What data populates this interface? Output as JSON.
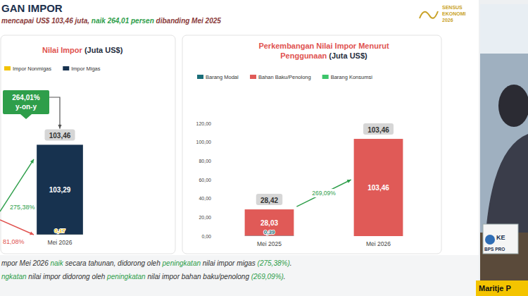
{
  "slide": {
    "title": "GAN IMPOR",
    "subtitle": [
      {
        "text": "mencapai US$ 103,46 juta, "
      },
      {
        "text": "naik 264,01 persen",
        "color": "#2e9e4a"
      },
      {
        "text": " dibanding Mei 2025"
      }
    ],
    "logo": [
      "SENSUS",
      "EKONOMI",
      "2026"
    ],
    "notes": [
      [
        {
          "text": "mpor Mei 2026 "
        },
        {
          "text": "naik",
          "color": "#2e9e4a"
        },
        {
          "text": " secara tahunan, didorong oleh "
        },
        {
          "text": "peningkatan",
          "color": "#2e9e4a"
        },
        {
          "text": " nilai impor migas "
        },
        {
          "text": "(275,38%)",
          "color": "#2e9e4a"
        },
        {
          "text": "."
        }
      ],
      [
        {
          "text": "ngkatan",
          "color": "#2e9e4a"
        },
        {
          "text": " nilai impor didorong oleh "
        },
        {
          "text": "peningkatan",
          "color": "#2e9e4a"
        },
        {
          "text": " nilai impor bahan baku/penolong "
        },
        {
          "text": "(269,09%)",
          "color": "#2e9e4a"
        },
        {
          "text": "."
        }
      ]
    ],
    "presenter": {
      "name": "Maritje P",
      "desk_sign": [
        "KE",
        "BPS PRO"
      ]
    }
  },
  "chart_data": [
    {
      "type": "bar",
      "stacked": true,
      "data_labels": true,
      "tick_labels": false,
      "legend": "top",
      "title": [
        {
          "text": "Nilai Impor ",
          "color": "#e0524f"
        },
        {
          "text": "(Juta US$)",
          "color": "#1f2d3d"
        }
      ],
      "categories": [
        "Mei 2026"
      ],
      "series": [
        {
          "name": "Impor Nonmigas",
          "color": "#f2c200",
          "values": [
            0.17
          ],
          "value_labels": [
            "0,17"
          ]
        },
        {
          "name": "Impor Migas",
          "color": "#17324f",
          "values": [
            103.29
          ],
          "value_labels": [
            "103,29"
          ]
        }
      ],
      "totals": [
        103.46
      ],
      "total_labels": [
        "103,46"
      ],
      "ylim": [
        0,
        120
      ],
      "growth": {
        "text": "264,01%",
        "sub": "y-on-y",
        "color": "#2e9e4a"
      },
      "changes": [
        {
          "text": "275,38%",
          "color": "#2e9e4a"
        },
        {
          "text": "81,08%",
          "color": "#e0524f"
        }
      ]
    },
    {
      "type": "bar",
      "stacked": true,
      "data_labels": true,
      "legend": "top",
      "title": [
        {
          "text": "Perkembangan Nilai Impor Menurut Penggunaan ",
          "color": "#e0524f"
        },
        {
          "text": "(Juta US$)",
          "color": "#1f2d3d"
        }
      ],
      "categories": [
        "Mei 2025",
        "Mei 2026"
      ],
      "series": [
        {
          "name": "Barang Modal",
          "color": "#1a6e79",
          "values": [
            0.39,
            0
          ],
          "value_labels": [
            "0,39",
            null
          ]
        },
        {
          "name": "Bahan Baku/Penolong",
          "color": "#e05a57",
          "values": [
            28.03,
            103.46
          ],
          "value_labels": [
            "28,03",
            "103,46"
          ]
        },
        {
          "name": "Barang Konsumsi",
          "color": "#3cc46a",
          "values": [
            0,
            0
          ]
        }
      ],
      "totals": [
        28.42,
        103.46
      ],
      "total_labels": [
        "28,42",
        "103,46"
      ],
      "ylim": [
        0,
        120
      ],
      "yticks": [
        {
          "value": 0,
          "label": "0,00"
        },
        {
          "value": 20,
          "label": "20,00"
        },
        {
          "value": 40,
          "label": "40,00"
        },
        {
          "value": 60,
          "label": "60,00"
        },
        {
          "value": 80,
          "label": "80,00"
        },
        {
          "value": 100,
          "label": "100,00"
        },
        {
          "value": 120,
          "label": "120,00"
        }
      ],
      "growth": {
        "text": "269,09%",
        "color": "#2e9e4a"
      }
    }
  ]
}
